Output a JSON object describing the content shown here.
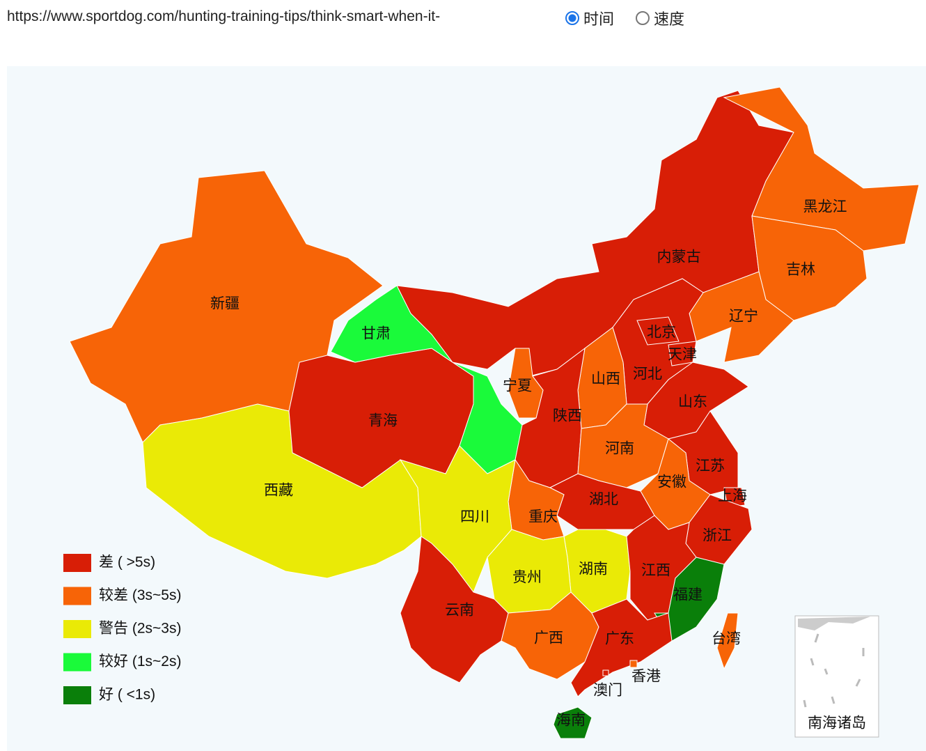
{
  "url": "https://www.sportdog.com/hunting-training-tips/think-smart-when-it-",
  "radio": [
    {
      "label": "时间",
      "checked": true
    },
    {
      "label": "速度",
      "checked": false
    }
  ],
  "map": {
    "legend": [
      {
        "label": "差 ( >5s)",
        "color": "#d81e06"
      },
      {
        "label": "较差 (3s~5s)",
        "color": "#f76407"
      },
      {
        "label": "警告 (2s~3s)",
        "color": "#eaea06"
      },
      {
        "label": "较好 (1s~2s)",
        "color": "#1afa3a"
      },
      {
        "label": "好 ( <1s)",
        "color": "#0a7f0a"
      }
    ],
    "regions": [
      {
        "name": "新疆",
        "level": 1
      },
      {
        "name": "西藏",
        "level": 2
      },
      {
        "name": "青海",
        "level": 0
      },
      {
        "name": "甘肃",
        "level": 3
      },
      {
        "name": "内蒙古",
        "level": 0
      },
      {
        "name": "黑龙江",
        "level": 1
      },
      {
        "name": "吉林",
        "level": 1
      },
      {
        "name": "辽宁",
        "level": 1
      },
      {
        "name": "河北",
        "level": 0
      },
      {
        "name": "北京",
        "level": 0
      },
      {
        "name": "天津",
        "level": 0
      },
      {
        "name": "山西",
        "level": 1
      },
      {
        "name": "山东",
        "level": 0
      },
      {
        "name": "陕西",
        "level": 0
      },
      {
        "name": "宁夏",
        "level": 1
      },
      {
        "name": "河南",
        "level": 1
      },
      {
        "name": "江苏",
        "level": 0
      },
      {
        "name": "安徽",
        "level": 1
      },
      {
        "name": "上海",
        "level": 0
      },
      {
        "name": "浙江",
        "level": 0
      },
      {
        "name": "湖北",
        "level": 0
      },
      {
        "name": "重庆",
        "level": 1
      },
      {
        "name": "四川",
        "level": 2
      },
      {
        "name": "湖南",
        "level": 2
      },
      {
        "name": "江西",
        "level": 0
      },
      {
        "name": "福建",
        "level": 4
      },
      {
        "name": "贵州",
        "level": 2
      },
      {
        "name": "云南",
        "level": 0
      },
      {
        "name": "广西",
        "level": 1
      },
      {
        "name": "广东",
        "level": 0
      },
      {
        "name": "香港",
        "level": 1
      },
      {
        "name": "澳门",
        "level": 0
      },
      {
        "name": "海南",
        "level": 4
      },
      {
        "name": "台湾",
        "level": 1
      }
    ],
    "inset_label": "南海诸岛"
  }
}
